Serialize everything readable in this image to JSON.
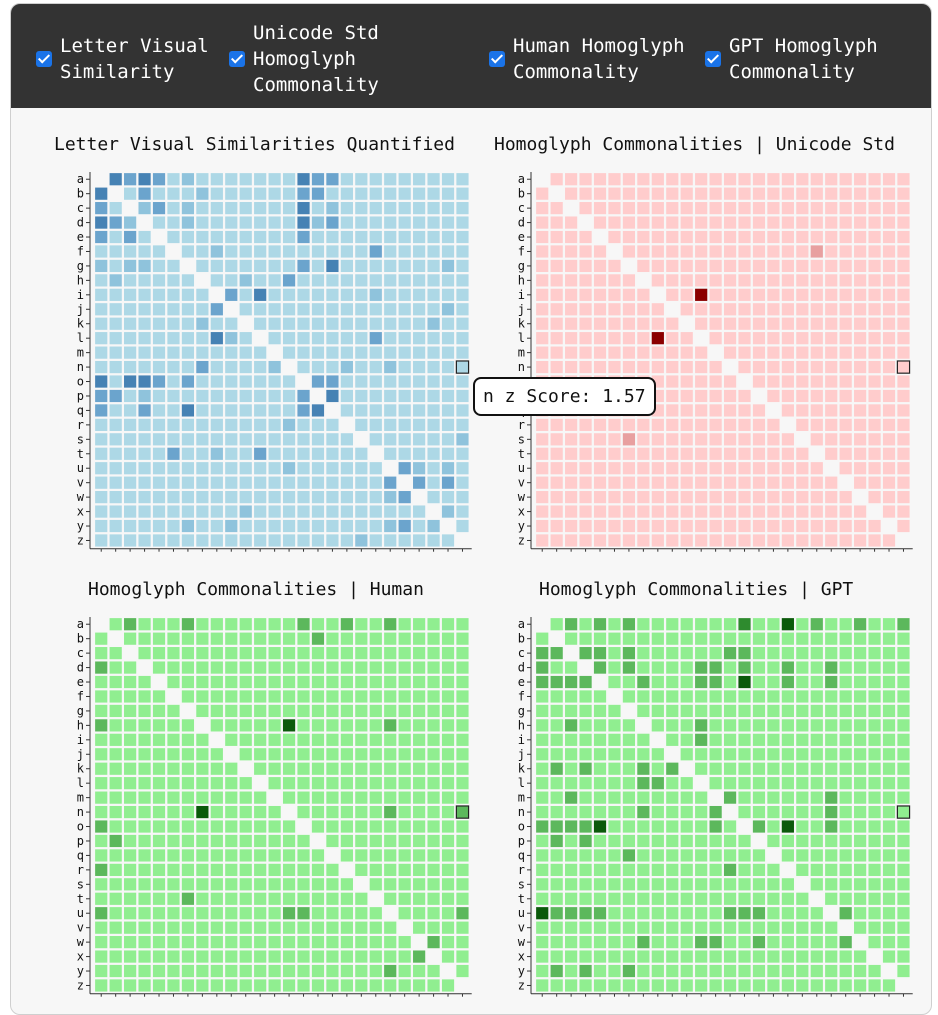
{
  "toolbar": {
    "checkboxes": [
      {
        "label": "Letter Visual\nSimilarity",
        "checked": true
      },
      {
        "label": "Unicode Std\nHomoglyph\nCommonality",
        "checked": true
      },
      {
        "label": "Human Homoglyph\nCommonality",
        "checked": true
      },
      {
        "label": "GPT Homoglyph\nCommonality",
        "checked": true
      }
    ]
  },
  "row_labels": [
    "a",
    "b",
    "c",
    "d",
    "e",
    "f",
    "g",
    "h",
    "i",
    "j",
    "k",
    "l",
    "m",
    "n",
    "o",
    "p",
    "q",
    "r",
    "s",
    "t",
    "u",
    "v",
    "w",
    "x",
    "y",
    "z"
  ],
  "charts": [
    {
      "title": "Letter Visual Similarities Quantified",
      "palette": [
        "#add8e6",
        "#8fc3dc",
        "#6ba4cd",
        "#4682b4"
      ],
      "base": "#add8e6",
      "cells": {
        "a": {
          "b": 3,
          "c": 2,
          "d": 3,
          "e": 2,
          "g": 1,
          "o": 3,
          "p": 2,
          "q": 2
        },
        "b": {
          "a": 3,
          "d": 2,
          "h": 1,
          "o": 2,
          "p": 2
        },
        "c": {
          "a": 2,
          "d": 1,
          "e": 2,
          "g": 1,
          "o": 3,
          "q": 1
        },
        "d": {
          "a": 3,
          "b": 2,
          "c": 1,
          "g": 1,
          "o": 3,
          "p": 1,
          "q": 2
        },
        "e": {
          "a": 2,
          "c": 2,
          "o": 2
        },
        "f": {
          "i": 1,
          "t": 2
        },
        "g": {
          "a": 1,
          "c": 1,
          "d": 1,
          "o": 2,
          "q": 3,
          "y": 1
        },
        "h": {
          "b": 1,
          "k": 1,
          "n": 2
        },
        "i": {
          "j": 2,
          "l": 3,
          "t": 1
        },
        "j": {
          "i": 2,
          "y": 1
        },
        "k": {
          "h": 1,
          "x": 1
        },
        "l": {
          "i": 3,
          "j": 1,
          "t": 2
        },
        "n": {
          "h": 2,
          "m": 1,
          "r": 1,
          "u": 1
        },
        "o": {
          "a": 3,
          "c": 3,
          "d": 3,
          "e": 2,
          "g": 2,
          "p": 2,
          "q": 2
        },
        "p": {
          "a": 2,
          "b": 2,
          "d": 1,
          "o": 2,
          "q": 3
        },
        "q": {
          "a": 2,
          "d": 2,
          "g": 3,
          "o": 2,
          "p": 3
        },
        "r": {
          "n": 1
        },
        "s": {
          "z": 1
        },
        "t": {
          "f": 2,
          "i": 1,
          "l": 2
        },
        "u": {
          "n": 1,
          "v": 2,
          "w": 1,
          "y": 1
        },
        "v": {
          "u": 2,
          "w": 2,
          "y": 2
        },
        "w": {
          "u": 1,
          "v": 2
        },
        "x": {
          "k": 1,
          "y": 1
        },
        "y": {
          "g": 1,
          "j": 1,
          "u": 1,
          "v": 2,
          "x": 1
        },
        "z": {
          "s": 1
        }
      }
    },
    {
      "title": "Homoglyph Commonalities | Unicode Std",
      "palette": [
        "#ffcccc",
        "#e8a0a0",
        "#c03030",
        "#8b0000"
      ],
      "base": "#ffcccc",
      "cells": {
        "f": {
          "t": 1
        },
        "i": {
          "l": 3
        },
        "l": {
          "i": 3
        },
        "s": {
          "g": 1
        }
      }
    },
    {
      "title": "Homoglyph Commonalities | Human",
      "palette": [
        "#90ee90",
        "#5cb85c",
        "#2e8b2e",
        "#0b5a0b"
      ],
      "base": "#90ee90",
      "cells": {
        "a": {
          "c": 1,
          "g": 1,
          "o": 1,
          "r": 1,
          "u": 1
        },
        "b": {
          "p": 1
        },
        "d": {
          "a": 1
        },
        "h": {
          "a": 1,
          "n": 3,
          "u": 1
        },
        "n": {
          "h": 3,
          "u": 1,
          "z": 1
        },
        "o": {
          "a": 1
        },
        "p": {
          "b": 1
        },
        "r": {
          "a": 1
        },
        "t": {
          "g": 1
        },
        "u": {
          "a": 1,
          "n": 1,
          "o": 1,
          "z": 1
        },
        "w": {
          "x": 1
        },
        "x": {
          "w": 1
        },
        "y": {
          "u": 1
        }
      }
    },
    {
      "title": "Homoglyph Commonalities | GPT",
      "palette": [
        "#90ee90",
        "#5cb85c",
        "#2e8b2e",
        "#0b5a0b"
      ],
      "base": "#90ee90",
      "cells": {
        "a": {
          "c": 1,
          "e": 1,
          "g": 1,
          "o": 2,
          "r": 3,
          "t": 1,
          "w": 1,
          "z": 1
        },
        "c": {
          "a": 1,
          "b": 1,
          "d": 1,
          "e": 1,
          "g": 1,
          "n": 1,
          "o": 1
        },
        "d": {
          "a": 1,
          "e": 1,
          "g": 1,
          "l": 1,
          "m": 1,
          "o": 1,
          "r": 1,
          "u": 1
        },
        "e": {
          "a": 1,
          "b": 1,
          "c": 1,
          "d": 1,
          "h": 1,
          "l": 1,
          "m": 1,
          "o": 3,
          "r": 1,
          "u": 1
        },
        "h": {
          "c": 1,
          "l": 1
        },
        "i": {
          "l": 1
        },
        "k": {
          "b": 1,
          "d": 1,
          "h": 1,
          "j": 1
        },
        "l": {
          "h": 1,
          "i": 1
        },
        "m": {
          "c": 1,
          "n": 1,
          "u": 1
        },
        "n": {
          "h": 1,
          "m": 1,
          "u": 1
        },
        "o": {
          "a": 1,
          "b": 1,
          "c": 1,
          "d": 1,
          "e": 3,
          "m": 1,
          "p": 1,
          "r": 3,
          "u": 1
        },
        "p": {
          "b": 1,
          "d": 1
        },
        "q": {
          "g": 1
        },
        "r": {
          "n": 1
        },
        "u": {
          "a": 3,
          "b": 1,
          "c": 1,
          "d": 1,
          "e": 1,
          "n": 1,
          "o": 1,
          "p": 1,
          "v": 1
        },
        "w": {
          "h": 1,
          "l": 1,
          "m": 1,
          "p": 1,
          "v": 1
        },
        "y": {
          "b": 1,
          "d": 1,
          "g": 1
        }
      }
    }
  ],
  "hover": {
    "row": "n",
    "col": "z"
  },
  "tooltip": {
    "text": "n z Score: 1.57"
  }
}
